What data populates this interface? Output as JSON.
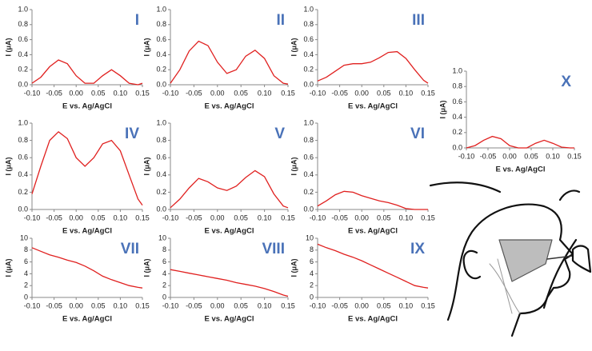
{
  "chart_data": [
    {
      "type": "line",
      "label": "I",
      "xlabel": "E vs. Ag/AgCl",
      "ylabel": "I (μA)",
      "color": "#e0201f",
      "x": [
        -0.1,
        -0.08,
        -0.06,
        -0.04,
        -0.02,
        0,
        0.02,
        0.04,
        0.06,
        0.08,
        0.1,
        0.12,
        0.14,
        0.15
      ],
      "values": [
        0.02,
        0.1,
        0.24,
        0.33,
        0.28,
        0.12,
        0.02,
        0.02,
        0.12,
        0.2,
        0.12,
        0.02,
        0,
        0.02
      ],
      "xlim": [
        -0.1,
        0.15
      ],
      "xticks": [
        {
          "value": -0.1,
          "label": "-0.10"
        },
        {
          "value": -0.05,
          "label": "-0.05"
        },
        {
          "value": 0,
          "label": "0.00"
        },
        {
          "value": 0.05,
          "label": "0.05"
        },
        {
          "value": 0.1,
          "label": "0.10"
        },
        {
          "value": 0.15,
          "label": "0.15"
        }
      ],
      "ylim": [
        0,
        1
      ],
      "yticks": [
        {
          "value": 0,
          "label": "0.0"
        },
        {
          "value": 0.2,
          "label": "0.2"
        },
        {
          "value": 0.4,
          "label": "0.4"
        },
        {
          "value": 0.6,
          "label": "0.6"
        },
        {
          "value": 0.8,
          "label": "0.8"
        },
        {
          "value": 1,
          "label": "1.0"
        }
      ]
    },
    {
      "type": "line",
      "label": "II",
      "xlabel": "E vs. Ag/AgCl",
      "ylabel": "I (μA)",
      "color": "#e0201f",
      "x": [
        -0.1,
        -0.08,
        -0.06,
        -0.04,
        -0.02,
        0,
        0.02,
        0.04,
        0.06,
        0.08,
        0.1,
        0.12,
        0.14,
        0.15
      ],
      "values": [
        0.02,
        0.2,
        0.45,
        0.58,
        0.52,
        0.3,
        0.15,
        0.2,
        0.38,
        0.46,
        0.35,
        0.12,
        0.02,
        0.01
      ],
      "xlim": [
        -0.1,
        0.15
      ],
      "xticks": [
        {
          "value": -0.1,
          "label": "-0.10"
        },
        {
          "value": -0.05,
          "label": "-0.05"
        },
        {
          "value": 0,
          "label": "0.00"
        },
        {
          "value": 0.05,
          "label": "0.05"
        },
        {
          "value": 0.1,
          "label": "0.10"
        },
        {
          "value": 0.15,
          "label": "0.15"
        }
      ],
      "ylim": [
        0,
        1
      ],
      "yticks": [
        {
          "value": 0,
          "label": "0.0"
        },
        {
          "value": 0.2,
          "label": "0.2"
        },
        {
          "value": 0.4,
          "label": "0.4"
        },
        {
          "value": 0.6,
          "label": "0.6"
        },
        {
          "value": 0.8,
          "label": "0.8"
        },
        {
          "value": 1,
          "label": "1.0"
        }
      ]
    },
    {
      "type": "line",
      "label": "III",
      "xlabel": "E vs. Ag/AgCl",
      "ylabel": "I (μA)",
      "color": "#e0201f",
      "x": [
        -0.1,
        -0.08,
        -0.06,
        -0.04,
        -0.02,
        0,
        0.02,
        0.04,
        0.06,
        0.08,
        0.1,
        0.12,
        0.14,
        0.15
      ],
      "values": [
        0.05,
        0.1,
        0.18,
        0.26,
        0.28,
        0.28,
        0.3,
        0.36,
        0.43,
        0.44,
        0.35,
        0.2,
        0.06,
        0.02
      ],
      "xlim": [
        -0.1,
        0.15
      ],
      "xticks": [
        {
          "value": -0.1,
          "label": "-0.10"
        },
        {
          "value": -0.05,
          "label": "-0.05"
        },
        {
          "value": 0,
          "label": "0.00"
        },
        {
          "value": 0.05,
          "label": "0.05"
        },
        {
          "value": 0.1,
          "label": "0.10"
        },
        {
          "value": 0.15,
          "label": "0.15"
        }
      ],
      "ylim": [
        0,
        1
      ],
      "yticks": [
        {
          "value": 0,
          "label": "0.0"
        },
        {
          "value": 0.2,
          "label": "0.2"
        },
        {
          "value": 0.4,
          "label": "0.4"
        },
        {
          "value": 0.6,
          "label": "0.6"
        },
        {
          "value": 0.8,
          "label": "0.8"
        },
        {
          "value": 1,
          "label": "1.0"
        }
      ]
    },
    {
      "type": "line",
      "label": "IV",
      "xlabel": "E vs. Ag/AgCl",
      "ylabel": "I (μA)",
      "color": "#e0201f",
      "x": [
        -0.1,
        -0.08,
        -0.06,
        -0.04,
        -0.02,
        0,
        0.02,
        0.04,
        0.06,
        0.08,
        0.1,
        0.12,
        0.14,
        0.15
      ],
      "values": [
        0.18,
        0.5,
        0.8,
        0.9,
        0.82,
        0.6,
        0.5,
        0.6,
        0.76,
        0.8,
        0.68,
        0.4,
        0.12,
        0.05
      ],
      "xlim": [
        -0.1,
        0.15
      ],
      "xticks": [
        {
          "value": -0.1,
          "label": "-0.10"
        },
        {
          "value": -0.05,
          "label": "-0.05"
        },
        {
          "value": 0,
          "label": "0.00"
        },
        {
          "value": 0.05,
          "label": "0.05"
        },
        {
          "value": 0.1,
          "label": "0.10"
        },
        {
          "value": 0.15,
          "label": "0.15"
        }
      ],
      "ylim": [
        0,
        1
      ],
      "yticks": [
        {
          "value": 0,
          "label": "0.0"
        },
        {
          "value": 0.2,
          "label": "0.2"
        },
        {
          "value": 0.4,
          "label": "0.4"
        },
        {
          "value": 0.6,
          "label": "0.6"
        },
        {
          "value": 0.8,
          "label": "0.8"
        },
        {
          "value": 1,
          "label": "1.0"
        }
      ]
    },
    {
      "type": "line",
      "label": "V",
      "xlabel": "E vs. Ag/AgCl",
      "ylabel": "I (μA)",
      "color": "#e0201f",
      "x": [
        -0.1,
        -0.08,
        -0.06,
        -0.04,
        -0.02,
        0,
        0.02,
        0.04,
        0.06,
        0.08,
        0.1,
        0.12,
        0.14,
        0.15
      ],
      "values": [
        0.02,
        0.12,
        0.25,
        0.36,
        0.32,
        0.25,
        0.22,
        0.27,
        0.37,
        0.45,
        0.38,
        0.18,
        0.04,
        0.02
      ],
      "xlim": [
        -0.1,
        0.15
      ],
      "xticks": [
        {
          "value": -0.1,
          "label": "-0.10"
        },
        {
          "value": -0.05,
          "label": "-0.05"
        },
        {
          "value": 0,
          "label": "0.00"
        },
        {
          "value": 0.05,
          "label": "0.05"
        },
        {
          "value": 0.1,
          "label": "0.10"
        },
        {
          "value": 0.15,
          "label": "0.15"
        }
      ],
      "ylim": [
        0,
        1
      ],
      "yticks": [
        {
          "value": 0,
          "label": "0.0"
        },
        {
          "value": 0.2,
          "label": "0.2"
        },
        {
          "value": 0.4,
          "label": "0.4"
        },
        {
          "value": 0.6,
          "label": "0.6"
        },
        {
          "value": 0.8,
          "label": "0.8"
        },
        {
          "value": 1,
          "label": "1.0"
        }
      ]
    },
    {
      "type": "line",
      "label": "VI",
      "xlabel": "E vs. Ag/AgCl",
      "ylabel": "I (μA)",
      "color": "#e0201f",
      "x": [
        -0.1,
        -0.08,
        -0.06,
        -0.04,
        -0.02,
        0,
        0.02,
        0.04,
        0.06,
        0.08,
        0.1,
        0.12,
        0.14,
        0.15
      ],
      "values": [
        0.04,
        0.1,
        0.17,
        0.21,
        0.2,
        0.16,
        0.13,
        0.1,
        0.08,
        0.05,
        0.01,
        0,
        0,
        0
      ],
      "xlim": [
        -0.1,
        0.15
      ],
      "xticks": [
        {
          "value": -0.1,
          "label": "-0.10"
        },
        {
          "value": -0.05,
          "label": "-0.05"
        },
        {
          "value": 0,
          "label": "0.00"
        },
        {
          "value": 0.05,
          "label": "0.05"
        },
        {
          "value": 0.1,
          "label": "0.10"
        },
        {
          "value": 0.15,
          "label": "0.15"
        }
      ],
      "ylim": [
        0,
        1
      ],
      "yticks": [
        {
          "value": 0,
          "label": "0.0"
        },
        {
          "value": 0.2,
          "label": "0.2"
        },
        {
          "value": 0.4,
          "label": "0.4"
        },
        {
          "value": 0.6,
          "label": "0.6"
        },
        {
          "value": 0.8,
          "label": "0.8"
        },
        {
          "value": 1,
          "label": "1.0"
        }
      ]
    },
    {
      "type": "line",
      "label": "VII",
      "xlabel": "E vs. Ag/AgCl",
      "ylabel": "I (μA)",
      "color": "#e0201f",
      "x": [
        -0.1,
        -0.08,
        -0.06,
        -0.04,
        -0.02,
        0,
        0.02,
        0.04,
        0.06,
        0.08,
        0.1,
        0.12,
        0.14,
        0.15
      ],
      "values": [
        8.4,
        7.8,
        7.2,
        6.8,
        6.3,
        5.9,
        5.3,
        4.5,
        3.6,
        3.0,
        2.5,
        2.0,
        1.7,
        1.6
      ],
      "xlim": [
        -0.1,
        0.15
      ],
      "xticks": [
        {
          "value": -0.1,
          "label": "-0.10"
        },
        {
          "value": -0.05,
          "label": "-0.05"
        },
        {
          "value": 0,
          "label": "0.00"
        },
        {
          "value": 0.05,
          "label": "0.05"
        },
        {
          "value": 0.1,
          "label": "0.10"
        },
        {
          "value": 0.15,
          "label": "0.15"
        }
      ],
      "ylim": [
        0,
        10
      ],
      "yticks": [
        0,
        2,
        4,
        6,
        8,
        10
      ]
    },
    {
      "type": "line",
      "label": "VIII",
      "xlabel": "E vs. Ag/AgCl",
      "ylabel": "I (μA)",
      "color": "#e0201f",
      "x": [
        -0.1,
        -0.08,
        -0.06,
        -0.04,
        -0.02,
        0,
        0.02,
        0.04,
        0.06,
        0.08,
        0.1,
        0.12,
        0.14,
        0.15
      ],
      "values": [
        4.7,
        4.4,
        4.1,
        3.8,
        3.5,
        3.2,
        2.9,
        2.5,
        2.2,
        1.9,
        1.5,
        1.0,
        0.4,
        0.2
      ],
      "xlim": [
        -0.1,
        0.15
      ],
      "xticks": [
        {
          "value": -0.1,
          "label": "-0.10"
        },
        {
          "value": -0.05,
          "label": "-0.05"
        },
        {
          "value": 0,
          "label": "0.00"
        },
        {
          "value": 0.05,
          "label": "0.05"
        },
        {
          "value": 0.1,
          "label": "0.10"
        },
        {
          "value": 0.15,
          "label": "0.15"
        }
      ],
      "ylim": [
        0,
        10
      ],
      "yticks": [
        0,
        2,
        4,
        6,
        8,
        10
      ]
    },
    {
      "type": "line",
      "label": "IX",
      "xlabel": "E vs. Ag/AgCl",
      "ylabel": "I (μA)",
      "color": "#e0201f",
      "x": [
        -0.1,
        -0.08,
        -0.06,
        -0.04,
        -0.02,
        0,
        0.02,
        0.04,
        0.06,
        0.08,
        0.1,
        0.12,
        0.14,
        0.15
      ],
      "values": [
        9.0,
        8.4,
        7.9,
        7.3,
        6.8,
        6.2,
        5.5,
        4.8,
        4.1,
        3.4,
        2.7,
        2.0,
        1.7,
        1.6
      ],
      "xlim": [
        -0.1,
        0.15
      ],
      "xticks": [
        {
          "value": -0.1,
          "label": "-0.10"
        },
        {
          "value": -0.05,
          "label": "-0.05"
        },
        {
          "value": 0,
          "label": "0.00"
        },
        {
          "value": 0.05,
          "label": "0.05"
        },
        {
          "value": 0.1,
          "label": "0.10"
        },
        {
          "value": 0.15,
          "label": "0.15"
        }
      ],
      "ylim": [
        0,
        10
      ],
      "yticks": [
        0,
        2,
        4,
        6,
        8,
        10
      ]
    },
    {
      "type": "line",
      "label": "X",
      "xlabel": "E vs. Ag/AgCl",
      "ylabel": "I (μA)",
      "color": "#e0201f",
      "x": [
        -0.1,
        -0.08,
        -0.06,
        -0.04,
        -0.02,
        0,
        0.02,
        0.04,
        0.06,
        0.08,
        0.1,
        0.12,
        0.14,
        0.15
      ],
      "values": [
        0,
        0.03,
        0.1,
        0.15,
        0.12,
        0.03,
        0,
        0,
        0.06,
        0.1,
        0.06,
        0.01,
        0,
        0
      ],
      "xlim": [
        -0.1,
        0.15
      ],
      "xticks": [
        {
          "value": -0.1,
          "label": "-0.10"
        },
        {
          "value": -0.05,
          "label": "-0.05"
        },
        {
          "value": 0,
          "label": "0.00"
        },
        {
          "value": 0.05,
          "label": "0.05"
        },
        {
          "value": 0.1,
          "label": "0.10"
        },
        {
          "value": 0.15,
          "label": "0.15"
        }
      ],
      "ylim": [
        0,
        1
      ],
      "yticks": [
        {
          "value": 0,
          "label": "0.0"
        },
        {
          "value": 0.2,
          "label": "0.2"
        },
        {
          "value": 0.4,
          "label": "0.4"
        },
        {
          "value": 0.6,
          "label": "0.6"
        },
        {
          "value": 0.8,
          "label": "0.8"
        },
        {
          "value": 1,
          "label": "1.0"
        }
      ]
    }
  ]
}
